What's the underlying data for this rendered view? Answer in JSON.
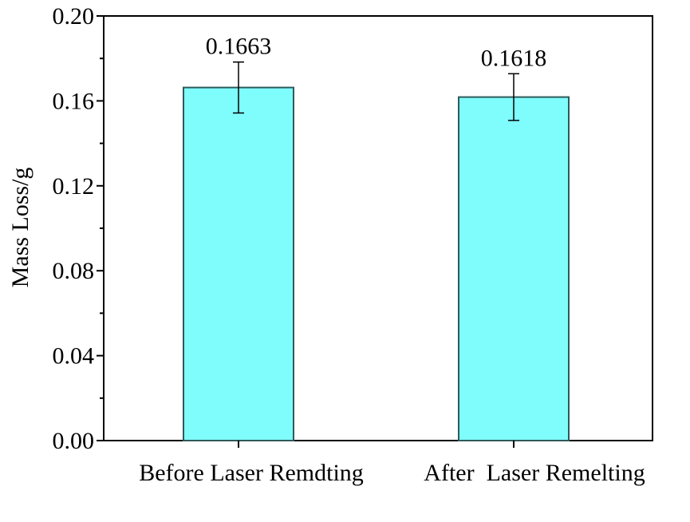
{
  "chart_data": {
    "type": "bar",
    "categories": [
      "Before Laser Remdting",
      "After  Laser Remelting"
    ],
    "values": [
      0.1663,
      0.1618
    ],
    "errors": [
      0.012,
      0.011
    ],
    "data_labels": [
      "0.1663",
      "0.1618"
    ],
    "title": "",
    "xlabel": "",
    "ylabel": "Mass Loss/g",
    "ylim": [
      0,
      0.2
    ],
    "yticks": [
      0.0,
      0.04,
      0.08,
      0.12,
      0.16,
      0.2
    ],
    "ytick_labels": [
      "0.00",
      "0.04",
      "0.08",
      "0.12",
      "0.16",
      "0.20"
    ],
    "grid": false,
    "colors": {
      "bar_fill": "#7ffcfc",
      "bar_stroke": "#2f5a5a",
      "axis": "#000000",
      "error_bar": "#000000"
    }
  }
}
